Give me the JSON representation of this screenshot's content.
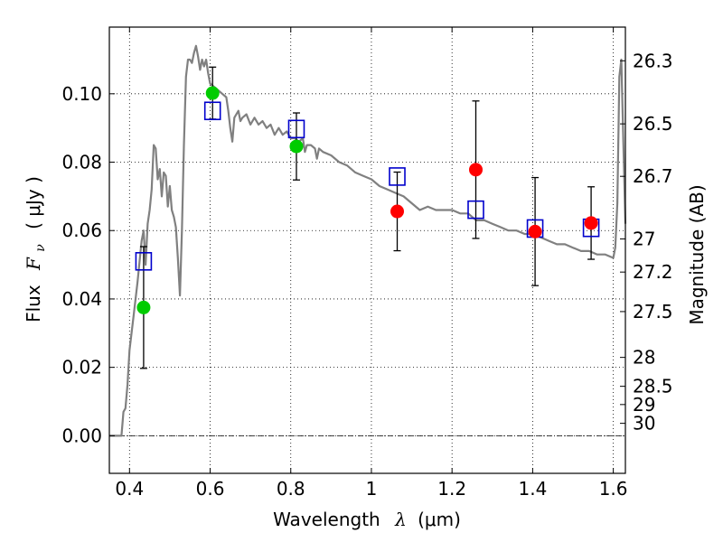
{
  "chart_data": {
    "type": "scatter",
    "xlabel_text": "Wavelength",
    "xlabel_symbol": "λ",
    "xlabel_unit": "(μm)",
    "ylabel_text": "Flux",
    "ylabel_symbol": "F",
    "ylabel_sub": "ν",
    "ylabel_unit": "( μJy )",
    "y2label": "Magnitude (AB)",
    "xlim": [
      0.35,
      1.63
    ],
    "ylim": [
      -0.011,
      0.1195
    ],
    "grid": true,
    "x_ticks": [
      {
        "value": 0.4,
        "label": "0.4"
      },
      {
        "value": 0.6,
        "label": "0.6"
      },
      {
        "value": 0.8,
        "label": "0.8"
      },
      {
        "value": 1.0,
        "label": "1"
      },
      {
        "value": 1.2,
        "label": "1.2"
      },
      {
        "value": 1.4,
        "label": "1.4"
      },
      {
        "value": 1.6,
        "label": "1.6"
      }
    ],
    "y_ticks": [
      {
        "value": 0.0,
        "label": "0.00"
      },
      {
        "value": 0.02,
        "label": "0.02"
      },
      {
        "value": 0.04,
        "label": "0.04"
      },
      {
        "value": 0.06,
        "label": "0.06"
      },
      {
        "value": 0.08,
        "label": "0.08"
      },
      {
        "value": 0.1,
        "label": "0.10"
      }
    ],
    "mag_ticks": [
      {
        "mag": 26.3,
        "label": "26.3"
      },
      {
        "mag": 26.5,
        "label": "26.5"
      },
      {
        "mag": 26.7,
        "label": "26.7"
      },
      {
        "mag": 27.0,
        "label": "27"
      },
      {
        "mag": 27.2,
        "label": "27.2"
      },
      {
        "mag": 27.5,
        "label": "27.5"
      },
      {
        "mag": 28.0,
        "label": "28"
      },
      {
        "mag": 28.5,
        "label": "28.5"
      },
      {
        "mag": 29.0,
        "label": "29"
      },
      {
        "mag": 30.0,
        "label": "30"
      }
    ],
    "colors": {
      "model": "#808080",
      "green": "#00cc00",
      "red": "#ff0000",
      "box": "#0000cc",
      "error": "#000000"
    },
    "model_spectrum": [
      [
        0.35,
        0.0
      ],
      [
        0.38,
        0.0
      ],
      [
        0.385,
        0.007
      ],
      [
        0.39,
        0.008
      ],
      [
        0.395,
        0.015
      ],
      [
        0.4,
        0.025
      ],
      [
        0.41,
        0.035
      ],
      [
        0.42,
        0.045
      ],
      [
        0.43,
        0.057
      ],
      [
        0.435,
        0.06
      ],
      [
        0.44,
        0.05
      ],
      [
        0.445,
        0.062
      ],
      [
        0.45,
        0.066
      ],
      [
        0.455,
        0.072
      ],
      [
        0.46,
        0.085
      ],
      [
        0.465,
        0.084
      ],
      [
        0.47,
        0.075
      ],
      [
        0.475,
        0.078
      ],
      [
        0.48,
        0.07
      ],
      [
        0.485,
        0.077
      ],
      [
        0.49,
        0.076
      ],
      [
        0.495,
        0.067
      ],
      [
        0.5,
        0.073
      ],
      [
        0.505,
        0.066
      ],
      [
        0.51,
        0.064
      ],
      [
        0.515,
        0.061
      ],
      [
        0.52,
        0.052
      ],
      [
        0.525,
        0.041
      ],
      [
        0.53,
        0.06
      ],
      [
        0.535,
        0.085
      ],
      [
        0.54,
        0.105
      ],
      [
        0.545,
        0.11
      ],
      [
        0.55,
        0.11
      ],
      [
        0.555,
        0.109
      ],
      [
        0.56,
        0.112
      ],
      [
        0.565,
        0.114
      ],
      [
        0.57,
        0.111
      ],
      [
        0.575,
        0.107
      ],
      [
        0.58,
        0.11
      ],
      [
        0.585,
        0.108
      ],
      [
        0.59,
        0.11
      ],
      [
        0.595,
        0.106
      ],
      [
        0.6,
        0.103
      ],
      [
        0.61,
        0.102
      ],
      [
        0.62,
        0.101
      ],
      [
        0.63,
        0.1
      ],
      [
        0.64,
        0.099
      ],
      [
        0.645,
        0.095
      ],
      [
        0.65,
        0.09
      ],
      [
        0.655,
        0.086
      ],
      [
        0.66,
        0.093
      ],
      [
        0.665,
        0.094
      ],
      [
        0.67,
        0.095
      ],
      [
        0.675,
        0.092
      ],
      [
        0.68,
        0.093
      ],
      [
        0.69,
        0.094
      ],
      [
        0.7,
        0.091
      ],
      [
        0.71,
        0.093
      ],
      [
        0.72,
        0.091
      ],
      [
        0.73,
        0.092
      ],
      [
        0.74,
        0.09
      ],
      [
        0.75,
        0.091
      ],
      [
        0.76,
        0.088
      ],
      [
        0.77,
        0.09
      ],
      [
        0.78,
        0.088
      ],
      [
        0.79,
        0.089
      ],
      [
        0.8,
        0.087
      ],
      [
        0.81,
        0.087
      ],
      [
        0.82,
        0.086
      ],
      [
        0.83,
        0.087
      ],
      [
        0.835,
        0.083
      ],
      [
        0.84,
        0.085
      ],
      [
        0.85,
        0.085
      ],
      [
        0.86,
        0.084
      ],
      [
        0.865,
        0.081
      ],
      [
        0.87,
        0.084
      ],
      [
        0.88,
        0.083
      ],
      [
        0.9,
        0.082
      ],
      [
        0.92,
        0.08
      ],
      [
        0.94,
        0.079
      ],
      [
        0.96,
        0.077
      ],
      [
        0.98,
        0.076
      ],
      [
        1.0,
        0.075
      ],
      [
        1.02,
        0.073
      ],
      [
        1.04,
        0.072
      ],
      [
        1.06,
        0.071
      ],
      [
        1.08,
        0.07
      ],
      [
        1.1,
        0.068
      ],
      [
        1.12,
        0.066
      ],
      [
        1.14,
        0.067
      ],
      [
        1.16,
        0.066
      ],
      [
        1.18,
        0.066
      ],
      [
        1.2,
        0.066
      ],
      [
        1.22,
        0.065
      ],
      [
        1.24,
        0.065
      ],
      [
        1.26,
        0.063
      ],
      [
        1.28,
        0.063
      ],
      [
        1.3,
        0.062
      ],
      [
        1.32,
        0.061
      ],
      [
        1.34,
        0.06
      ],
      [
        1.36,
        0.06
      ],
      [
        1.38,
        0.059
      ],
      [
        1.4,
        0.059
      ],
      [
        1.42,
        0.058
      ],
      [
        1.44,
        0.057
      ],
      [
        1.46,
        0.056
      ],
      [
        1.48,
        0.056
      ],
      [
        1.5,
        0.055
      ],
      [
        1.52,
        0.054
      ],
      [
        1.54,
        0.054
      ],
      [
        1.56,
        0.053
      ],
      [
        1.58,
        0.053
      ],
      [
        1.6,
        0.052
      ],
      [
        1.605,
        0.055
      ],
      [
        1.61,
        0.068
      ],
      [
        1.615,
        0.105
      ],
      [
        1.62,
        0.11
      ],
      [
        1.625,
        0.085
      ],
      [
        1.63,
        0.062
      ]
    ],
    "green_points": [
      {
        "x": 0.435,
        "y": 0.0375,
        "err": 0.0178
      },
      {
        "x": 0.606,
        "y": 0.1002,
        "err": 0.0076
      },
      {
        "x": 0.814,
        "y": 0.0846,
        "err": 0.0098
      }
    ],
    "red_points": [
      {
        "x": 1.064,
        "y": 0.0656,
        "err": 0.0115
      },
      {
        "x": 1.259,
        "y": 0.0778,
        "err": 0.0201
      },
      {
        "x": 1.406,
        "y": 0.0597,
        "err": 0.0158
      },
      {
        "x": 1.545,
        "y": 0.0622,
        "err": 0.0106
      }
    ],
    "model_boxes": [
      {
        "x": 0.435,
        "y": 0.051
      },
      {
        "x": 0.606,
        "y": 0.095
      },
      {
        "x": 0.814,
        "y": 0.0897
      },
      {
        "x": 1.064,
        "y": 0.0758
      },
      {
        "x": 1.259,
        "y": 0.0661
      },
      {
        "x": 1.406,
        "y": 0.0606
      },
      {
        "x": 1.545,
        "y": 0.0608
      }
    ]
  }
}
